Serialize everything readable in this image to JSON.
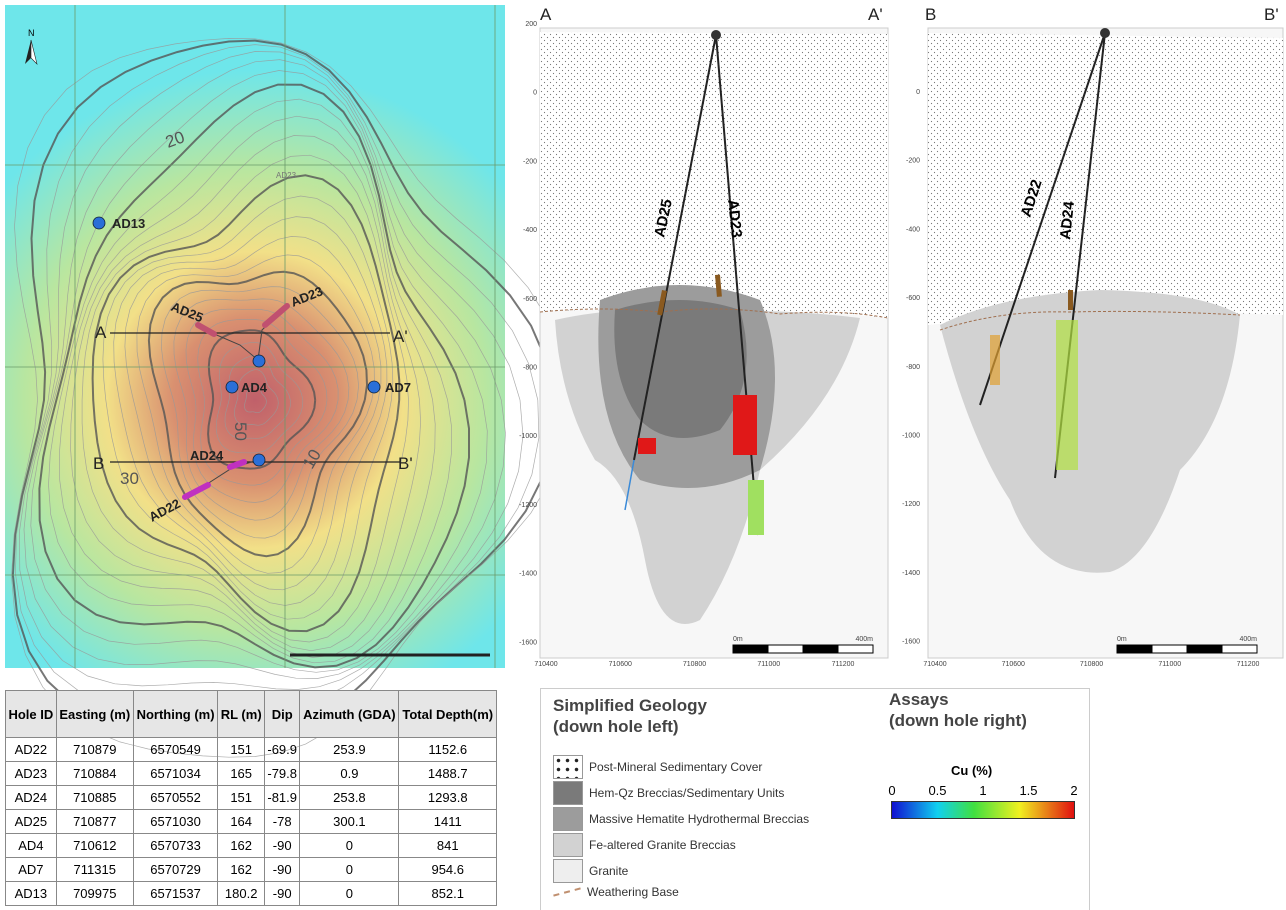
{
  "map": {
    "north": "N",
    "holes": [
      "AD13",
      "AD25",
      "AD23",
      "AD4",
      "AD7",
      "AD24",
      "AD22"
    ],
    "faint_label": "AD23",
    "sections": [
      "A",
      "A'",
      "B",
      "B'"
    ],
    "contour_labels": [
      "20",
      "30",
      "50",
      "10"
    ]
  },
  "section_a": {
    "left": "A",
    "right": "A'",
    "holes": [
      "AD25",
      "AD23"
    ],
    "y_ticks": [
      "200",
      "0",
      "-200",
      "-400",
      "-600",
      "-800",
      "-1000",
      "-1200",
      "-1400",
      "-1600"
    ],
    "x_ticks": [
      "710400",
      "710600",
      "710800",
      "711000",
      "711200"
    ],
    "scale": [
      "0m",
      "400m"
    ]
  },
  "section_b": {
    "left": "B",
    "right": "B'",
    "holes": [
      "AD22",
      "AD24"
    ],
    "y_ticks": [
      "0",
      "-200",
      "-400",
      "-600",
      "-800",
      "-1000",
      "-1200",
      "-1400",
      "-1600"
    ],
    "x_ticks": [
      "710400",
      "710600",
      "710800",
      "711000",
      "711200"
    ],
    "scale": [
      "0m",
      "400m"
    ]
  },
  "table": {
    "header": [
      "Hole ID",
      "Easting (m)",
      "Northing (m)",
      "RL (m)",
      "Dip",
      "Azimuth (GDA)",
      "Total Depth(m)"
    ],
    "rows": [
      [
        "AD22",
        "710879",
        "6570549",
        "151",
        "-69.9",
        "253.9",
        "1152.6"
      ],
      [
        "AD23",
        "710884",
        "6571034",
        "165",
        "-79.8",
        "0.9",
        "1488.7"
      ],
      [
        "AD24",
        "710885",
        "6570552",
        "151",
        "-81.9",
        "253.8",
        "1293.8"
      ],
      [
        "AD25",
        "710877",
        "6571030",
        "164",
        "-78",
        "300.1",
        "1411"
      ],
      [
        "AD4",
        "710612",
        "6570733",
        "162",
        "-90",
        "0",
        "841"
      ],
      [
        "AD7",
        "711315",
        "6570729",
        "162",
        "-90",
        "0",
        "954.6"
      ],
      [
        "AD13",
        "709975",
        "6571537",
        "180.2",
        "-90",
        "0",
        "852.1"
      ]
    ]
  },
  "legend": {
    "geology_title": [
      "Simplified Geology",
      "(down hole left)"
    ],
    "geology_items": [
      "Post-Mineral Sedimentary Cover",
      "Hem-Qz Breccias/Sedimentary Units",
      "Massive Hematite Hydrothermal Breccias",
      "Fe-altered Granite Breccias",
      "Granite",
      "Weathering Base"
    ],
    "assays_title": [
      "Assays",
      "(down hole right)"
    ],
    "cu_label": "Cu (%)",
    "cu_ticks": [
      "0",
      "0.5",
      "1",
      "1.5",
      "2"
    ]
  }
}
